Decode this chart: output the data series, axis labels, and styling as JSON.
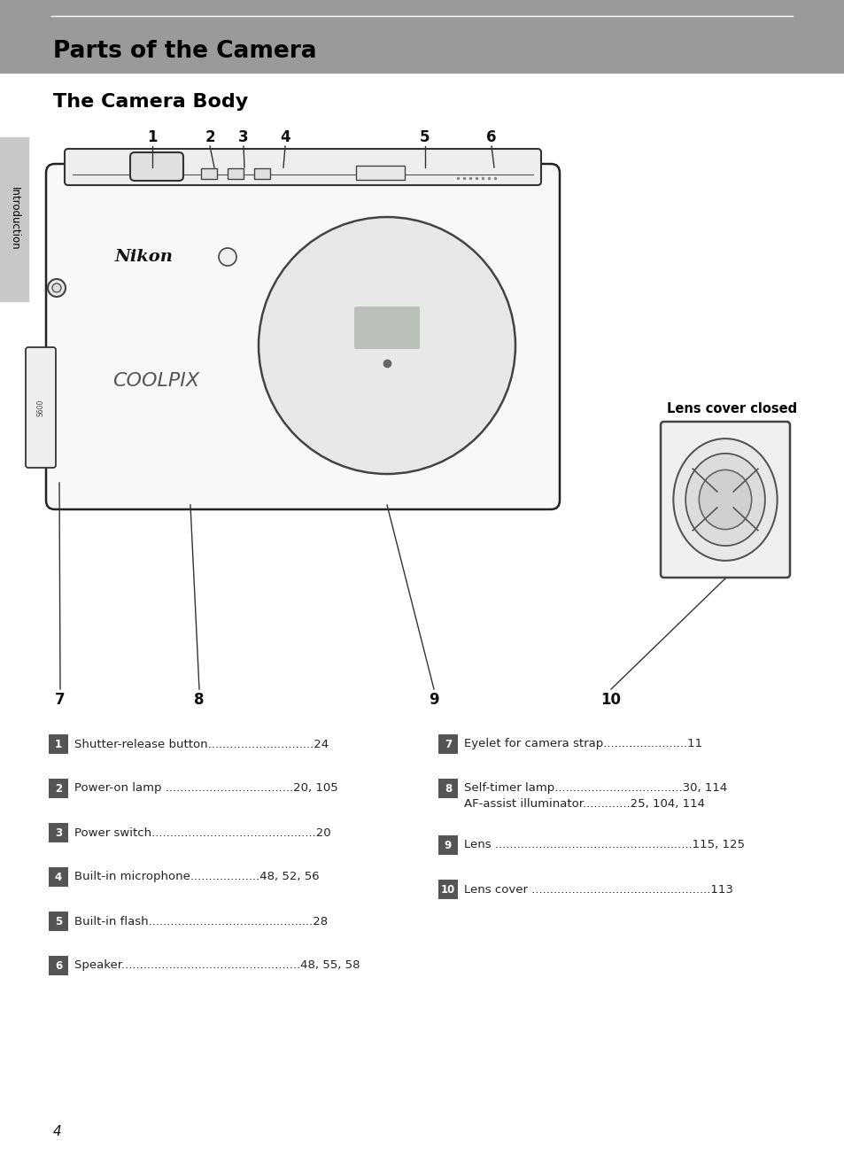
{
  "page_bg": "#ffffff",
  "header_bg": "#9a9a9a",
  "header_text": "Parts of the Camera",
  "header_text_color": "#000000",
  "section_title": "The Camera Body",
  "section_title_color": "#000000",
  "sidebar_bg": "#c8c8c8",
  "sidebar_text": "Introduction",
  "sidebar_text_color": "#000000",
  "page_number": "4",
  "label_bg": "#555555",
  "label_text_color": "#ffffff",
  "items_left": [
    {
      "num": "1",
      "text": "Shutter-release button",
      "dots": ".............................",
      "page": "24"
    },
    {
      "num": "2",
      "text": "Power-on lamp ",
      "dots": "...................................",
      "page": "20, 105"
    },
    {
      "num": "3",
      "text": "Power switch",
      "dots": ".............................................",
      "page": "20"
    },
    {
      "num": "4",
      "text": "Built-in microphone",
      "dots": "...................",
      "page": "48, 52, 56"
    },
    {
      "num": "5",
      "text": "Built-in flash",
      "dots": ".............................................",
      "page": "28"
    },
    {
      "num": "6",
      "text": "Speaker",
      "dots": ".................................................",
      "page": "48, 55, 58"
    }
  ],
  "items_right": [
    {
      "num": "7",
      "text": "Eyelet for camera strap",
      "dots": ".......................",
      "page": "11"
    },
    {
      "num": "8",
      "text": "Self-timer lamp",
      "dots": "...................................",
      "page": "30, 114",
      "subtext": "AF-assist illuminator",
      "subdots": ".............",
      "subpage": "25, 104, 114"
    },
    {
      "num": "9",
      "text": "Lens ",
      "dots": "......................................................",
      "page": "115, 125"
    },
    {
      "num": "10",
      "text": "Lens cover ",
      "dots": ".................................................",
      "page": "113"
    }
  ],
  "lens_cover_label": "Lens cover closed"
}
